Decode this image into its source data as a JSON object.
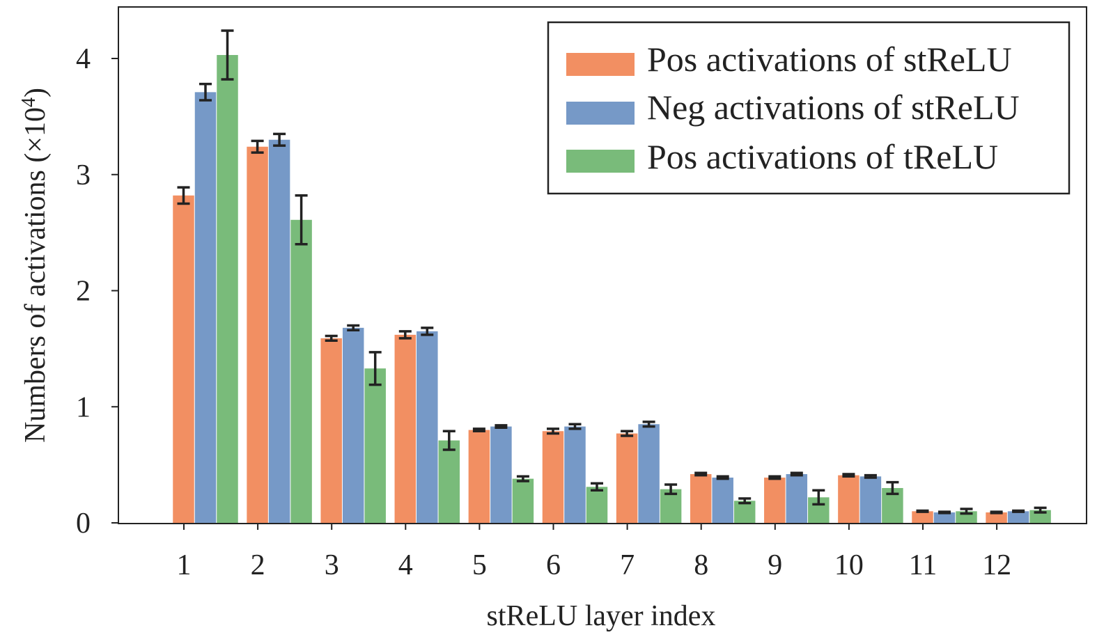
{
  "chart_data": {
    "type": "bar",
    "xlabel": "stReLU layer index",
    "ylabel_main": "Numbers of activations (×10",
    "ylabel_exp": "4",
    "ylabel_close": ")",
    "categories": [
      "1",
      "2",
      "3",
      "4",
      "5",
      "6",
      "7",
      "8",
      "9",
      "10",
      "11",
      "12"
    ],
    "yticks": [
      "0",
      "1",
      "2",
      "3",
      "4"
    ],
    "ylim": [
      0,
      4.4
    ],
    "y_multiplier": "×10^4",
    "grid": false,
    "legend_position": "top-right",
    "series": [
      {
        "name": "Pos activations of stReLU",
        "color": "#f28f62",
        "values": [
          2.82,
          3.24,
          1.59,
          1.62,
          0.8,
          0.79,
          0.77,
          0.42,
          0.39,
          0.41,
          0.1,
          0.09
        ],
        "errors": [
          0.07,
          0.05,
          0.02,
          0.03,
          0.01,
          0.02,
          0.02,
          0.01,
          0.01,
          0.01,
          0.005,
          0.005
        ]
      },
      {
        "name": "Neg activations of stReLU",
        "color": "#7699c7",
        "values": [
          3.71,
          3.3,
          1.68,
          1.65,
          0.83,
          0.83,
          0.85,
          0.39,
          0.42,
          0.4,
          0.09,
          0.1
        ],
        "errors": [
          0.07,
          0.05,
          0.02,
          0.03,
          0.01,
          0.02,
          0.02,
          0.01,
          0.01,
          0.01,
          0.005,
          0.005
        ]
      },
      {
        "name": "Pos activations of tReLU",
        "color": "#79bb7a",
        "values": [
          4.03,
          2.61,
          1.33,
          0.71,
          0.38,
          0.31,
          0.29,
          0.19,
          0.22,
          0.3,
          0.1,
          0.11
        ],
        "errors": [
          0.21,
          0.21,
          0.14,
          0.08,
          0.02,
          0.03,
          0.04,
          0.02,
          0.06,
          0.05,
          0.02,
          0.02
        ]
      }
    ]
  }
}
